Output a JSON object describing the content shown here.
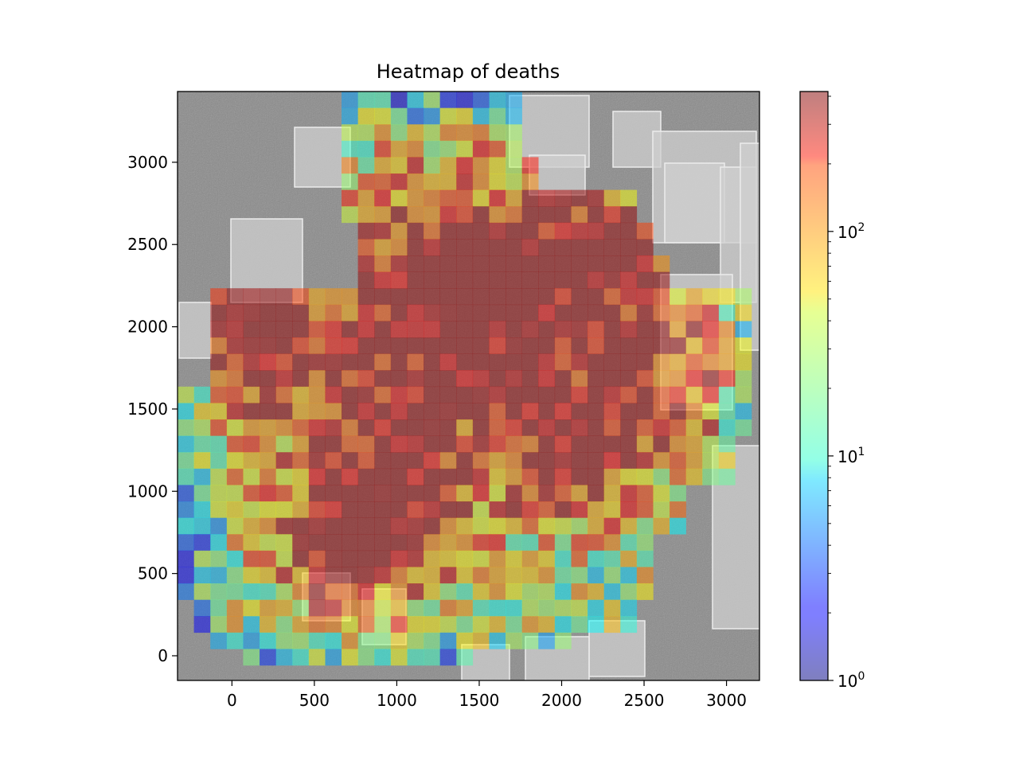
{
  "chart_data": {
    "type": "heatmap",
    "title": "Heatmap of deaths",
    "xlabel": "",
    "ylabel": "",
    "xlim": [
      -330,
      3200
    ],
    "ylim": [
      -150,
      3430
    ],
    "x_ticks": [
      0,
      500,
      1000,
      1500,
      2000,
      2500,
      3000
    ],
    "y_ticks": [
      0,
      500,
      1000,
      1500,
      2000,
      2500,
      3000
    ],
    "x_tick_labels": [
      "0",
      "500",
      "1000",
      "1500",
      "2000",
      "2500",
      "3000"
    ],
    "y_tick_labels": [
      "0",
      "500",
      "1000",
      "1500",
      "2000",
      "2500",
      "3000"
    ],
    "colorbar": {
      "scale": "log",
      "colormap": "jet",
      "alpha": 0.5,
      "min": 1,
      "max": 420,
      "tick_labels": [
        {
          "base": "10",
          "exp": "0",
          "value": 1
        },
        {
          "base": "10",
          "exp": "1",
          "value": 10
        },
        {
          "base": "10",
          "exp": "2",
          "value": 100
        }
      ]
    },
    "background": "grayscale aerial map of buildings",
    "grid": false
  },
  "colors": {
    "frame": "#000000",
    "background_map_base": "#8a8a8a",
    "building_roof": "#cfcfcf"
  }
}
